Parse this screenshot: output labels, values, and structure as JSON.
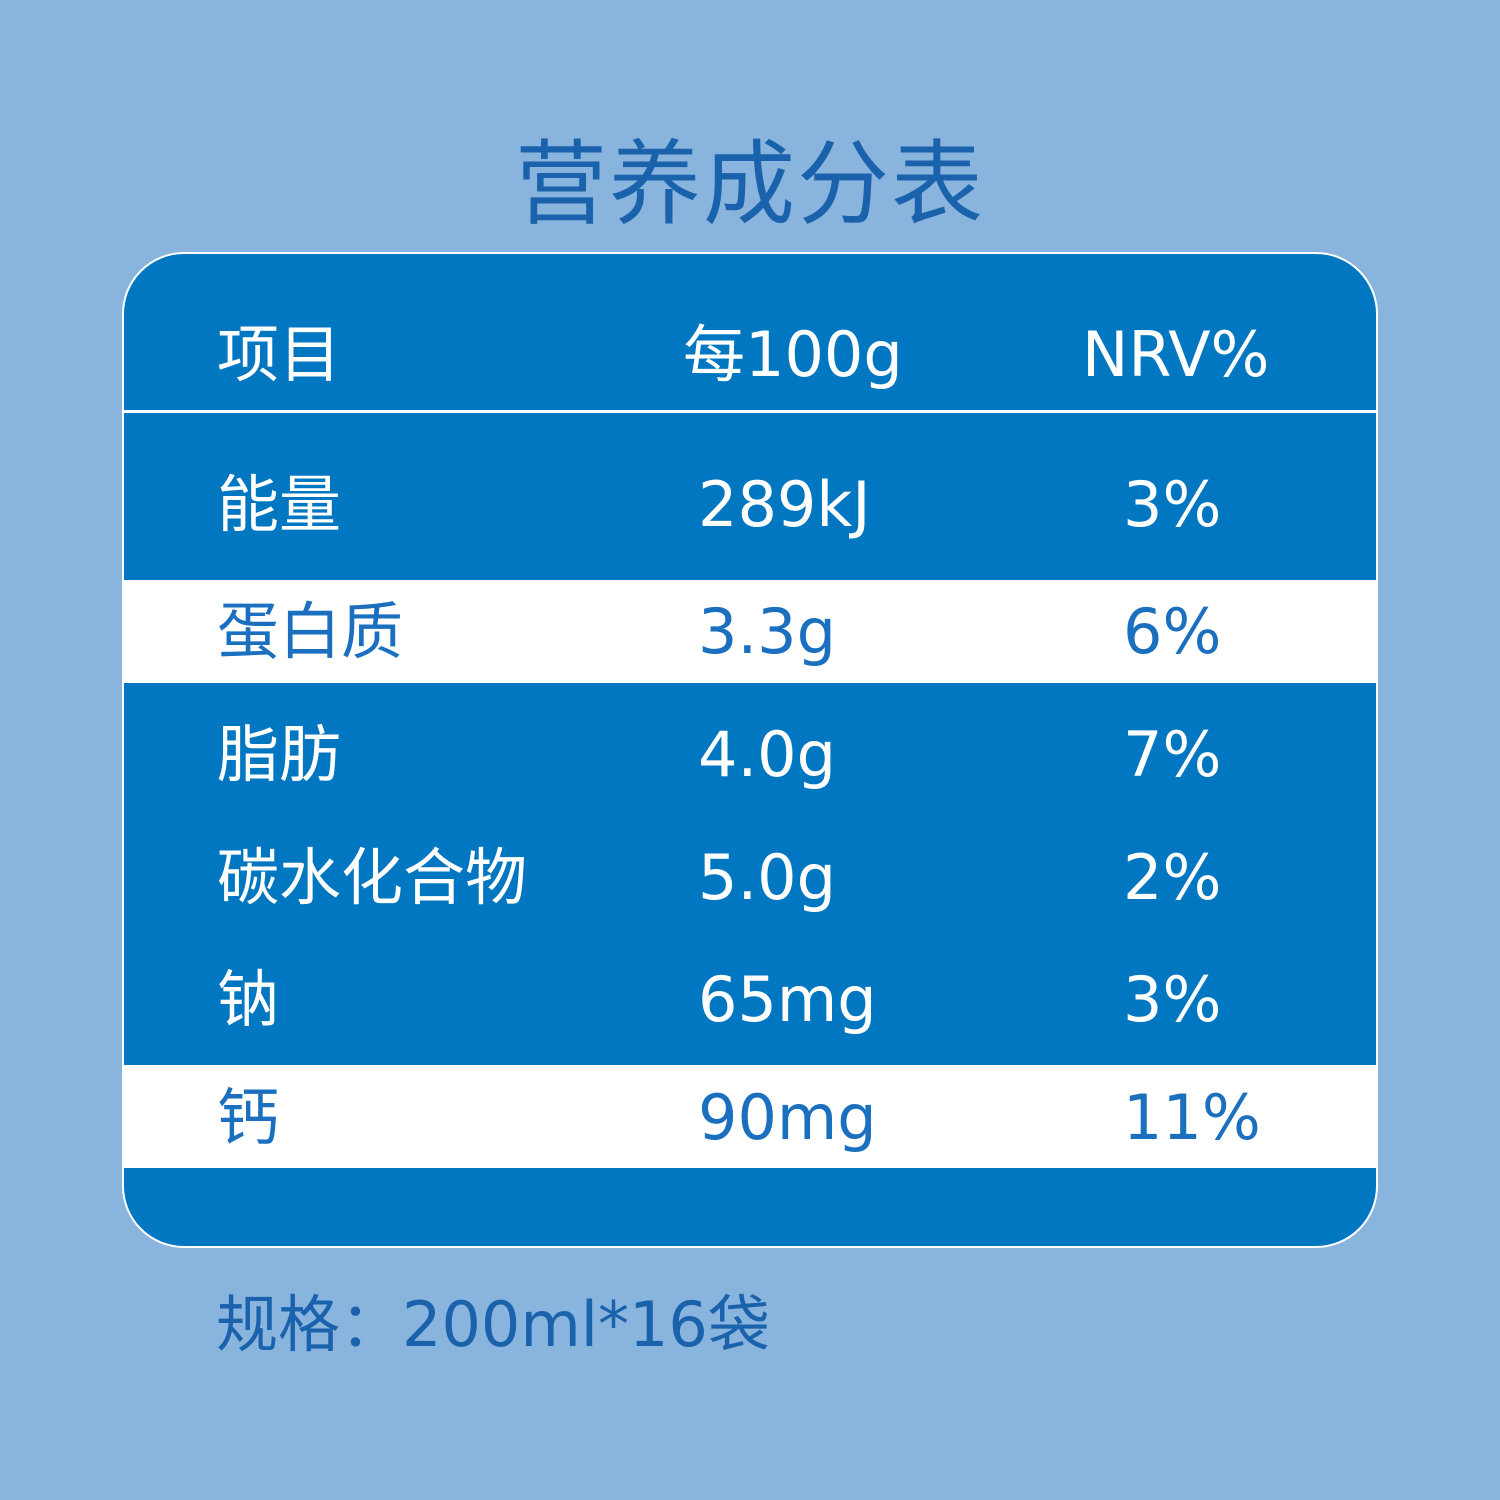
{
  "header": {
    "title": "营养成分表"
  },
  "table": {
    "columns": [
      "项目",
      "每100g",
      "NRV%"
    ],
    "rows": [
      [
        "能量",
        "289kJ",
        "3%"
      ],
      [
        "蛋白质",
        "3.3g",
        "6%"
      ],
      [
        "脂肪",
        "4.0g",
        "7%"
      ],
      [
        "碳水化合物",
        "5.0g",
        "2%"
      ],
      [
        "钠",
        "65mg",
        "3%"
      ],
      [
        "钙",
        "90mg",
        "11%"
      ]
    ]
  },
  "footer": "规格：200ml*16袋"
}
